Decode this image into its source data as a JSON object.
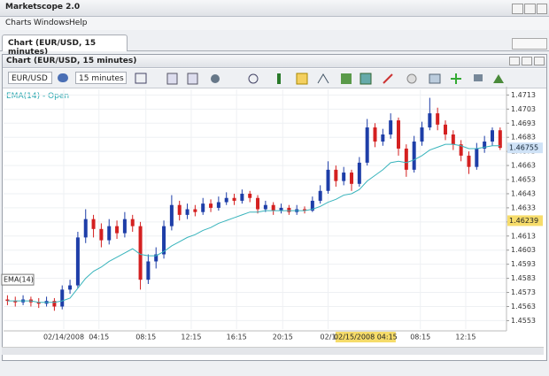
{
  "window": {
    "title": "Marketscope 2.0"
  },
  "menu": [
    "Charts",
    "Windows",
    "Help"
  ],
  "tab": "Chart (EUR/USD, 15 minutes)",
  "panel": {
    "title": "Chart (EUR/USD, 15 minutes)"
  },
  "toolbar": {
    "instrument": "EUR/USD",
    "timeframe": "15 minutes"
  },
  "chart_data": {
    "type": "candlestick",
    "indicator_label": "EMA(14) - Open",
    "up_color": "#1e3ea8",
    "down_color": "#d42020",
    "candles": [
      [
        1.4568,
        1.4571,
        1.4564,
        1.4567
      ],
      [
        1.4567,
        1.457,
        1.4563,
        1.4566
      ],
      [
        1.4566,
        1.4571,
        1.4564,
        1.4568
      ],
      [
        1.4568,
        1.457,
        1.4563,
        1.4566
      ],
      [
        1.4566,
        1.4569,
        1.4562,
        1.4565
      ],
      [
        1.4565,
        1.457,
        1.4563,
        1.4567
      ],
      [
        1.4567,
        1.4569,
        1.456,
        1.4563
      ],
      [
        1.4563,
        1.4578,
        1.4561,
        1.4575
      ],
      [
        1.4575,
        1.4582,
        1.4572,
        1.4578
      ],
      [
        1.4578,
        1.4616,
        1.4576,
        1.4612
      ],
      [
        1.4612,
        1.4632,
        1.4608,
        1.4625
      ],
      [
        1.4625,
        1.4628,
        1.4612,
        1.4618
      ],
      [
        1.4618,
        1.4622,
        1.4605,
        1.461
      ],
      [
        1.461,
        1.4625,
        1.4607,
        1.462
      ],
      [
        1.462,
        1.4624,
        1.4611,
        1.4615
      ],
      [
        1.4615,
        1.463,
        1.4612,
        1.4625
      ],
      [
        1.4625,
        1.4628,
        1.4616,
        1.462
      ],
      [
        1.462,
        1.4623,
        1.4575,
        1.4582
      ],
      [
        1.4582,
        1.46,
        1.4579,
        1.4595
      ],
      [
        1.4595,
        1.4605,
        1.459,
        1.46
      ],
      [
        1.46,
        1.4624,
        1.4597,
        1.462
      ],
      [
        1.462,
        1.4642,
        1.4617,
        1.4635
      ],
      [
        1.4635,
        1.4638,
        1.4624,
        1.4628
      ],
      [
        1.4628,
        1.4636,
        1.4625,
        1.4632
      ],
      [
        1.4632,
        1.4635,
        1.4627,
        1.463
      ],
      [
        1.463,
        1.464,
        1.4628,
        1.4636
      ],
      [
        1.4636,
        1.4639,
        1.463,
        1.4633
      ],
      [
        1.4633,
        1.4641,
        1.4631,
        1.4637
      ],
      [
        1.4637,
        1.4644,
        1.4635,
        1.464
      ],
      [
        1.464,
        1.4643,
        1.4635,
        1.4638
      ],
      [
        1.4638,
        1.4646,
        1.4636,
        1.4643
      ],
      [
        1.4643,
        1.4645,
        1.4637,
        1.464
      ],
      [
        1.464,
        1.4642,
        1.4629,
        1.4632
      ],
      [
        1.4632,
        1.4638,
        1.463,
        1.4635
      ],
      [
        1.4635,
        1.4637,
        1.4628,
        1.4631
      ],
      [
        1.4631,
        1.4636,
        1.4629,
        1.4633
      ],
      [
        1.4633,
        1.4635,
        1.4628,
        1.463
      ],
      [
        1.463,
        1.4635,
        1.4628,
        1.4632
      ],
      [
        1.4632,
        1.4634,
        1.4629,
        1.4631
      ],
      [
        1.4631,
        1.4641,
        1.463,
        1.4638
      ],
      [
        1.4638,
        1.4649,
        1.4636,
        1.4645
      ],
      [
        1.4645,
        1.4666,
        1.4643,
        1.466
      ],
      [
        1.466,
        1.4663,
        1.4648,
        1.4652
      ],
      [
        1.4652,
        1.4662,
        1.4649,
        1.4658
      ],
      [
        1.4658,
        1.466,
        1.4645,
        1.465
      ],
      [
        1.465,
        1.4669,
        1.4648,
        1.4665
      ],
      [
        1.4665,
        1.4696,
        1.4663,
        1.469
      ],
      [
        1.469,
        1.4693,
        1.4676,
        1.468
      ],
      [
        1.468,
        1.4689,
        1.4677,
        1.4685
      ],
      [
        1.4685,
        1.47,
        1.4682,
        1.4695
      ],
      [
        1.4695,
        1.4697,
        1.467,
        1.4675
      ],
      [
        1.4675,
        1.4678,
        1.4655,
        1.466
      ],
      [
        1.466,
        1.4684,
        1.4658,
        1.468
      ],
      [
        1.468,
        1.4694,
        1.4677,
        1.469
      ],
      [
        1.469,
        1.4711,
        1.4688,
        1.47
      ],
      [
        1.47,
        1.4704,
        1.4688,
        1.4692
      ],
      [
        1.4692,
        1.4695,
        1.4681,
        1.4685
      ],
      [
        1.4685,
        1.4688,
        1.4674,
        1.4678
      ],
      [
        1.4678,
        1.4681,
        1.4666,
        1.467
      ],
      [
        1.467,
        1.4673,
        1.4657,
        1.4662
      ],
      [
        1.4662,
        1.4679,
        1.466,
        1.4675
      ],
      [
        1.4675,
        1.4684,
        1.4672,
        1.468
      ],
      [
        1.468,
        1.469,
        1.4677,
        1.4688
      ],
      [
        1.4688,
        1.469,
        1.4674,
        1.46755
      ]
    ],
    "series": [
      {
        "name": "EMA(14)",
        "color": "#38b4bc",
        "values": [
          1.4567,
          1.4567,
          1.4567,
          1.4567,
          1.4566,
          1.4566,
          1.4566,
          1.4567,
          1.4569,
          1.4576,
          1.4583,
          1.4588,
          1.4591,
          1.4595,
          1.4598,
          1.4601,
          1.4604,
          1.46,
          1.4599,
          1.4599,
          1.4602,
          1.4606,
          1.4609,
          1.4612,
          1.4614,
          1.4617,
          1.4619,
          1.4622,
          1.4624,
          1.4626,
          1.4628,
          1.463,
          1.463,
          1.4631,
          1.4631,
          1.4631,
          1.4631,
          1.4631,
          1.4631,
          1.4632,
          1.4634,
          1.4637,
          1.4639,
          1.4642,
          1.4643,
          1.4646,
          1.4652,
          1.4656,
          1.466,
          1.4665,
          1.4666,
          1.4665,
          1.4667,
          1.467,
          1.4674,
          1.4676,
          1.4678,
          1.4678,
          1.4677,
          1.4675,
          1.4675,
          1.4676,
          1.4677,
          1.4677
        ]
      }
    ],
    "xlim": [
      -0.5,
      63.7
    ],
    "ylim": [
      1.4547,
      1.4717
    ],
    "yticks": [
      1.4553,
      1.4563,
      1.4573,
      1.4583,
      1.4593,
      1.4603,
      1.4613,
      1.4623,
      1.4633,
      1.4643,
      1.4653,
      1.4663,
      1.4673,
      1.4683,
      1.4693,
      1.4703,
      1.4713
    ],
    "xticks": [
      {
        "value": 7.2,
        "label": "02/14/2008"
      },
      {
        "value": 11.7,
        "label": "04:15"
      },
      {
        "value": 17.7,
        "label": "08:15"
      },
      {
        "value": 23.5,
        "label": "12:15"
      },
      {
        "value": 29.3,
        "label": "16:15"
      },
      {
        "value": 35.2,
        "label": "20:15"
      },
      {
        "value": 41.0,
        "label": "02/1"
      },
      {
        "value": 52.8,
        "label": "08:15"
      },
      {
        "value": 58.6,
        "label": "12:15"
      }
    ],
    "current_price": 1.46755,
    "cursor": {
      "x": 45.8,
      "price": 1.46239,
      "time": "02/15/2008 04:15"
    },
    "grid": true
  }
}
